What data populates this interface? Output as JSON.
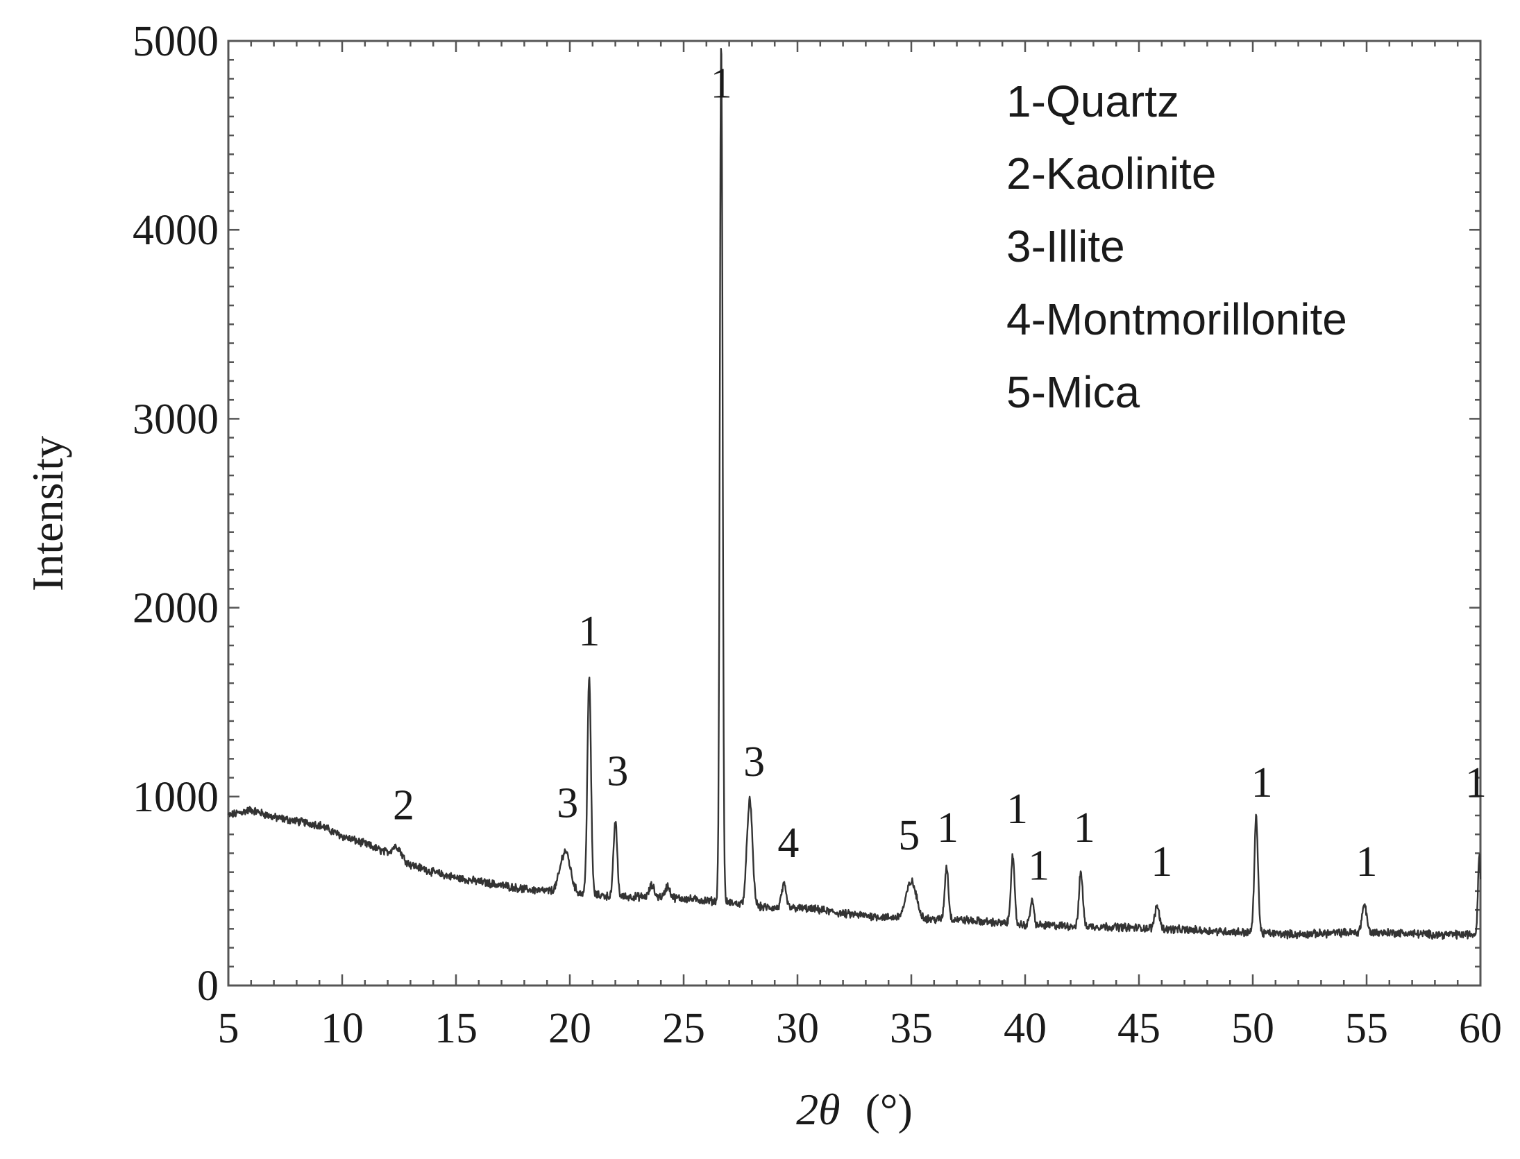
{
  "chart_data": {
    "type": "line",
    "xlabel_italic": "2θ",
    "xlabel_unit": "(°)",
    "ylabel": "Intensity",
    "xlim": [
      5,
      60
    ],
    "ylim": [
      0,
      5000
    ],
    "x_ticks": [
      5,
      10,
      15,
      20,
      25,
      30,
      35,
      40,
      45,
      50,
      55,
      60
    ],
    "y_ticks": [
      0,
      1000,
      2000,
      3000,
      4000,
      5000
    ],
    "grid": false,
    "legend_position": "top-right",
    "colors": {
      "line": "#333333",
      "axis": "#555555",
      "text": "#1a1a1a"
    },
    "legend": [
      "1-Quartz",
      "2-Kaolinite",
      "3-Illite",
      "4-Montmorillonite",
      "5-Mica"
    ],
    "baseline": [
      [
        5,
        900
      ],
      [
        6,
        930
      ],
      [
        7,
        890
      ],
      [
        8,
        870
      ],
      [
        9,
        850
      ],
      [
        10,
        790
      ],
      [
        11,
        750
      ],
      [
        12,
        700
      ],
      [
        13,
        640
      ],
      [
        14,
        600
      ],
      [
        15,
        570
      ],
      [
        16,
        550
      ],
      [
        17,
        530
      ],
      [
        18,
        510
      ],
      [
        19,
        500
      ],
      [
        20,
        490
      ],
      [
        21,
        480
      ],
      [
        22,
        470
      ],
      [
        23,
        470
      ],
      [
        24,
        470
      ],
      [
        25,
        460
      ],
      [
        26,
        450
      ],
      [
        27,
        440
      ],
      [
        28,
        420
      ],
      [
        29,
        410
      ],
      [
        30,
        410
      ],
      [
        31,
        400
      ],
      [
        32,
        380
      ],
      [
        33,
        370
      ],
      [
        34,
        360
      ],
      [
        35,
        360
      ],
      [
        36,
        350
      ],
      [
        37,
        350
      ],
      [
        38,
        340
      ],
      [
        39,
        330
      ],
      [
        40,
        320
      ],
      [
        42,
        315
      ],
      [
        44,
        310
      ],
      [
        46,
        300
      ],
      [
        48,
        290
      ],
      [
        50,
        280
      ],
      [
        52,
        270
      ],
      [
        54,
        280
      ],
      [
        56,
        280
      ],
      [
        58,
        270
      ],
      [
        60,
        270
      ]
    ],
    "peaks": [
      {
        "x": 12.4,
        "height": 60,
        "width": 0.2
      },
      {
        "x": 19.8,
        "height": 220,
        "width": 0.22
      },
      {
        "x": 20.85,
        "height": 1140,
        "width": 0.08
      },
      {
        "x": 22.0,
        "height": 400,
        "width": 0.08
      },
      {
        "x": 23.6,
        "height": 60,
        "width": 0.1
      },
      {
        "x": 24.3,
        "height": 60,
        "width": 0.1
      },
      {
        "x": 26.65,
        "height": 4560,
        "width": 0.06
      },
      {
        "x": 27.9,
        "height": 560,
        "width": 0.12
      },
      {
        "x": 29.4,
        "height": 120,
        "width": 0.1
      },
      {
        "x": 35.0,
        "height": 190,
        "width": 0.22
      },
      {
        "x": 36.55,
        "height": 280,
        "width": 0.08
      },
      {
        "x": 39.45,
        "height": 360,
        "width": 0.08
      },
      {
        "x": 40.3,
        "height": 130,
        "width": 0.08
      },
      {
        "x": 42.45,
        "height": 290,
        "width": 0.08
      },
      {
        "x": 45.8,
        "height": 120,
        "width": 0.1
      },
      {
        "x": 50.15,
        "height": 610,
        "width": 0.08
      },
      {
        "x": 54.9,
        "height": 150,
        "width": 0.1
      },
      {
        "x": 59.95,
        "height": 420,
        "width": 0.06
      }
    ],
    "peak_labels": [
      {
        "text": "1",
        "x": 26.65,
        "y": 4700
      },
      {
        "text": "1",
        "x": 20.85,
        "y": 1800
      },
      {
        "text": "3",
        "x": 22.1,
        "y": 1060
      },
      {
        "text": "3",
        "x": 19.9,
        "y": 890
      },
      {
        "text": "2",
        "x": 12.7,
        "y": 880
      },
      {
        "text": "3",
        "x": 28.1,
        "y": 1110
      },
      {
        "text": "4",
        "x": 29.6,
        "y": 680
      },
      {
        "text": "5",
        "x": 34.9,
        "y": 720
      },
      {
        "text": "1",
        "x": 36.6,
        "y": 760
      },
      {
        "text": "1",
        "x": 39.65,
        "y": 860
      },
      {
        "text": "1",
        "x": 40.6,
        "y": 560
      },
      {
        "text": "1",
        "x": 42.6,
        "y": 760
      },
      {
        "text": "1",
        "x": 46.0,
        "y": 580
      },
      {
        "text": "1",
        "x": 50.4,
        "y": 1000
      },
      {
        "text": "1",
        "x": 55.0,
        "y": 580
      },
      {
        "text": "1",
        "x": 59.8,
        "y": 1000
      }
    ]
  }
}
